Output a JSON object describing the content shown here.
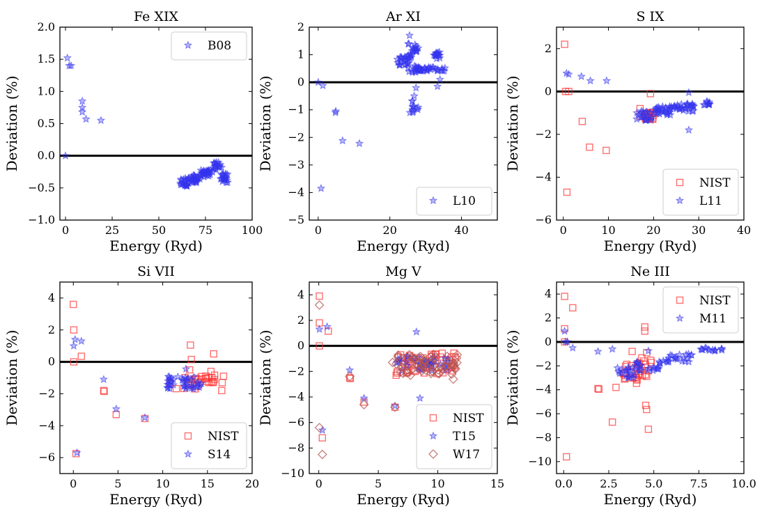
{
  "chart_data": [
    {
      "type": "scatter",
      "title": "Fe XIX",
      "xlabel": "Energy (Ryd)",
      "ylabel": "Deviation (%)",
      "xlim": [
        -3,
        100
      ],
      "ylim": [
        -1.0,
        2.0
      ],
      "xticks": [
        0,
        25,
        50,
        75,
        100
      ],
      "yticks": [
        -1.0,
        -0.5,
        0.0,
        0.5,
        1.0,
        1.5,
        2.0
      ],
      "xtick_labels": [
        "0",
        "25",
        "50",
        "75",
        "100"
      ],
      "ytick_labels": [
        "−1.0",
        "−0.5",
        "0.0",
        "0.5",
        "1.0",
        "1.5",
        "2.0"
      ],
      "zero_line": true,
      "legend_position": "top-right",
      "series": [
        {
          "name": "B08",
          "marker": "star",
          "color": "#3333ee",
          "points": [
            [
              0,
              0.0
            ],
            [
              1,
              1.52
            ],
            [
              2,
              1.4
            ],
            [
              3,
              1.4
            ],
            [
              9,
              0.85
            ],
            [
              9,
              0.75
            ],
            [
              9,
              0.68
            ],
            [
              11,
              0.57
            ],
            [
              19,
              0.55
            ]
          ],
          "bands": [
            {
              "x": [
                61,
                66
              ],
              "y": [
                -0.5,
                -0.35
              ],
              "n": 22
            },
            {
              "x": [
                66,
                72
              ],
              "y": [
                -0.42,
                -0.3
              ],
              "n": 26
            },
            {
              "x": [
                72,
                79
              ],
              "y": [
                -0.33,
                -0.22
              ],
              "n": 28
            },
            {
              "x": [
                79,
                84
              ],
              "y": [
                -0.22,
                -0.1
              ],
              "n": 18
            },
            {
              "x": [
                83,
                87
              ],
              "y": [
                -0.42,
                -0.28
              ],
              "n": 22
            }
          ]
        }
      ]
    },
    {
      "type": "scatter",
      "title": "Ar XI",
      "xlabel": "Energy (Ryd)",
      "ylabel": "Deviation (%)",
      "xlim": [
        -2.5,
        50
      ],
      "ylim": [
        -5,
        2
      ],
      "xticks": [
        0,
        20,
        40
      ],
      "yticks": [
        -5,
        -4,
        -3,
        -2,
        -1,
        0,
        1,
        2
      ],
      "xtick_labels": [
        "0",
        "20",
        "40"
      ],
      "ytick_labels": [
        "−5",
        "−4",
        "−3",
        "−2",
        "−1",
        "0",
        "1",
        "2"
      ],
      "zero_line": true,
      "legend_position": "bottom-right",
      "series": [
        {
          "name": "L10",
          "marker": "star",
          "color": "#3333ee",
          "points": [
            [
              0,
              0.0
            ],
            [
              0.8,
              -3.85
            ],
            [
              1.3,
              -0.12
            ],
            [
              4.8,
              -1.1
            ],
            [
              4.9,
              -1.05
            ],
            [
              6.8,
              -2.12
            ],
            [
              11.5,
              -2.22
            ],
            [
              25.5,
              1.7
            ],
            [
              25.6,
              -1.1
            ],
            [
              26.3,
              -1.0
            ],
            [
              26.8,
              -0.5
            ],
            [
              27.3,
              -0.2
            ],
            [
              33.3,
              -0.15
            ],
            [
              34.0,
              0.1
            ]
          ],
          "bands": [
            {
              "x": [
                22,
                26
              ],
              "y": [
                0.6,
                0.95
              ],
              "n": 24
            },
            {
              "x": [
                25,
                28
              ],
              "y": [
                0.9,
                1.4
              ],
              "n": 20
            },
            {
              "x": [
                25,
                28
              ],
              "y": [
                0.35,
                0.6
              ],
              "n": 16
            },
            {
              "x": [
                28,
                36
              ],
              "y": [
                0.4,
                0.55
              ],
              "n": 30
            },
            {
              "x": [
                32,
                34
              ],
              "y": [
                0.85,
                1.1
              ],
              "n": 16
            },
            {
              "x": [
                26,
                28
              ],
              "y": [
                -1.1,
                -0.6
              ],
              "n": 10
            }
          ]
        }
      ]
    },
    {
      "type": "scatter",
      "title": "S IX",
      "xlabel": "Energy (Ryd)",
      "ylabel": "Deviation (%)",
      "xlim": [
        -1.5,
        40
      ],
      "ylim": [
        -6,
        3
      ],
      "xticks": [
        0,
        10,
        20,
        30,
        40
      ],
      "yticks": [
        -6,
        -4,
        -2,
        0,
        2
      ],
      "xtick_labels": [
        "0",
        "10",
        "20",
        "30",
        "40"
      ],
      "ytick_labels": [
        "−6",
        "−4",
        "−2",
        "0",
        "2"
      ],
      "zero_line": true,
      "legend_position": "bottom-right",
      "series": [
        {
          "name": "NIST",
          "marker": "square",
          "color": "#ff3333",
          "points": [
            [
              0.3,
              2.2
            ],
            [
              0.5,
              0.0
            ],
            [
              0.8,
              -4.7
            ],
            [
              1.2,
              0.0
            ],
            [
              4.2,
              -1.4
            ],
            [
              5.8,
              -2.6
            ],
            [
              9.5,
              -2.75
            ],
            [
              17,
              -0.8
            ],
            [
              18,
              -1.1
            ],
            [
              19.3,
              -0.1
            ],
            [
              19.8,
              -1.3
            ],
            [
              20,
              -1.0
            ]
          ],
          "bands": [
            {
              "x": [
                17,
                20
              ],
              "y": [
                -1.3,
                -0.95
              ],
              "n": 16
            }
          ]
        },
        {
          "name": "L11",
          "marker": "star",
          "color": "#3333ee",
          "points": [
            [
              0.7,
              0.85
            ],
            [
              1.2,
              0.8
            ],
            [
              4.0,
              0.7
            ],
            [
              6.0,
              0.5
            ],
            [
              9.6,
              0.5
            ],
            [
              27.8,
              -0.05
            ],
            [
              27.8,
              -1.8
            ]
          ],
          "bands": [
            {
              "x": [
                16,
                20
              ],
              "y": [
                -1.35,
                -0.9
              ],
              "n": 20
            },
            {
              "x": [
                20,
                24
              ],
              "y": [
                -1.1,
                -0.7
              ],
              "n": 30
            },
            {
              "x": [
                24,
                29
              ],
              "y": [
                -0.95,
                -0.55
              ],
              "n": 30
            },
            {
              "x": [
                31,
                32.5
              ],
              "y": [
                -0.65,
                -0.45
              ],
              "n": 10
            }
          ]
        }
      ]
    },
    {
      "type": "scatter",
      "title": "Si VII",
      "xlabel": "Energy (Ryd)",
      "ylabel": "Deviation (%)",
      "xlim": [
        -1.5,
        20
      ],
      "ylim": [
        -7,
        5
      ],
      "xticks": [
        0,
        5,
        10,
        15,
        20
      ],
      "yticks": [
        -6,
        -4,
        -2,
        0,
        2,
        4
      ],
      "xtick_labels": [
        "0",
        "5",
        "10",
        "15",
        "20"
      ],
      "ytick_labels": [
        "−6",
        "−4",
        "−2",
        "0",
        "2",
        "4"
      ],
      "zero_line": true,
      "legend_position": "bottom-right",
      "series": [
        {
          "name": "NIST",
          "marker": "square",
          "color": "#ff3333",
          "points": [
            [
              0,
              3.6
            ],
            [
              0.05,
              2.0
            ],
            [
              0.05,
              0.0
            ],
            [
              0.3,
              -5.75
            ],
            [
              0.9,
              0.35
            ],
            [
              3.4,
              -1.8
            ],
            [
              3.45,
              -1.85
            ],
            [
              4.8,
              -3.3
            ],
            [
              8,
              -3.55
            ],
            [
              13.1,
              1.05
            ],
            [
              13.2,
              0.15
            ],
            [
              13.0,
              -0.5
            ],
            [
              15.7,
              0.5
            ],
            [
              15.4,
              -0.6
            ],
            [
              16.8,
              -0.9
            ],
            [
              16.6,
              -1.8
            ]
          ],
          "bands": [
            {
              "x": [
                10.8,
                14.0
              ],
              "y": [
                -1.7,
                -0.9
              ],
              "n": 14
            },
            {
              "x": [
                14.0,
                17.0
              ],
              "y": [
                -1.4,
                -0.8
              ],
              "n": 16
            }
          ]
        },
        {
          "name": "S14",
          "marker": "star",
          "color": "#3333ee",
          "points": [
            [
              0.05,
              1.0
            ],
            [
              0.2,
              1.4
            ],
            [
              0.9,
              1.3
            ],
            [
              0.4,
              -5.7
            ],
            [
              3.4,
              -1.1
            ],
            [
              4.8,
              -2.95
            ],
            [
              8,
              -3.5
            ],
            [
              12.6,
              -0.45
            ]
          ],
          "bands": [
            {
              "x": [
                10.5,
                14.5
              ],
              "y": [
                -1.7,
                -0.85
              ],
              "n": 40
            }
          ]
        }
      ]
    },
    {
      "type": "scatter",
      "title": "Mg V",
      "xlabel": "Energy (Ryd)",
      "ylabel": "Deviation (%)",
      "xlim": [
        -0.8,
        15
      ],
      "ylim": [
        -10,
        5
      ],
      "xticks": [
        0,
        5,
        10,
        15
      ],
      "yticks": [
        -10,
        -8,
        -6,
        -4,
        -2,
        0,
        2,
        4
      ],
      "xtick_labels": [
        "0",
        "5",
        "10",
        "15"
      ],
      "ytick_labels": [
        "−10",
        "−8",
        "−6",
        "−4",
        "−2",
        "0",
        "2",
        "4"
      ],
      "zero_line": true,
      "legend_position": "bottom-right",
      "series": [
        {
          "name": "NIST",
          "marker": "square",
          "color": "#ff3333",
          "points": [
            [
              0.05,
              3.9
            ],
            [
              0.05,
              1.8
            ],
            [
              0.05,
              0.0
            ],
            [
              0.3,
              -7.2
            ],
            [
              0.8,
              1.15
            ],
            [
              2.6,
              -2.5
            ],
            [
              2.65,
              -2.55
            ],
            [
              3.8,
              -4.4
            ],
            [
              6.4,
              -4.8
            ],
            [
              6.5,
              -2.3
            ],
            [
              8.1,
              -2.0
            ]
          ],
          "bands": [
            {
              "x": [
                6.5,
                11.5
              ],
              "y": [
                -2.2,
                -0.5
              ],
              "n": 50
            }
          ]
        },
        {
          "name": "T15",
          "marker": "star",
          "color": "#3333ee",
          "points": [
            [
              0.05,
              1.3
            ],
            [
              0.7,
              1.5
            ],
            [
              0.3,
              -6.6
            ],
            [
              2.6,
              -1.9
            ],
            [
              3.8,
              -4.1
            ],
            [
              6.4,
              -4.7
            ],
            [
              8.2,
              1.1
            ],
            [
              8.5,
              -4.1
            ]
          ],
          "bands": [
            {
              "x": [
                6.5,
                11.0
              ],
              "y": [
                -2.0,
                -0.8
              ],
              "n": 40
            }
          ]
        },
        {
          "name": "W17",
          "marker": "diamond",
          "color": "#b5544f",
          "points": [
            [
              0.05,
              3.2
            ],
            [
              0.05,
              -6.4
            ],
            [
              0.3,
              -8.5
            ],
            [
              2.6,
              -2.4
            ],
            [
              3.8,
              -4.6
            ],
            [
              6.4,
              -4.8
            ],
            [
              6.2,
              -1.3
            ],
            [
              11.3,
              -2.6
            ]
          ],
          "bands": [
            {
              "x": [
                6.5,
                11.8
              ],
              "y": [
                -2.3,
                -0.6
              ],
              "n": 60
            }
          ]
        }
      ]
    },
    {
      "type": "scatter",
      "title": "Ne III",
      "xlabel": "Energy (Ryd)",
      "ylabel": "Deviation (%)",
      "xlim": [
        -0.4,
        10
      ],
      "ylim": [
        -11,
        5
      ],
      "xticks": [
        0,
        2.5,
        5,
        7.5,
        10
      ],
      "yticks": [
        -10,
        -8,
        -6,
        -4,
        -2,
        0,
        2,
        4
      ],
      "xtick_labels": [
        "0.0",
        "2.5",
        "5.0",
        "7.5",
        "10.0"
      ],
      "ytick_labels": [
        "−10",
        "−8",
        "−6",
        "−4",
        "−2",
        "0",
        "2",
        "4"
      ],
      "zero_line": true,
      "legend_position": "top-right",
      "series": [
        {
          "name": "NIST",
          "marker": "square",
          "color": "#ff3333",
          "points": [
            [
              0.05,
              3.8
            ],
            [
              0.05,
              1.1
            ],
            [
              0.05,
              0.0
            ],
            [
              0.15,
              -9.6
            ],
            [
              0.5,
              2.85
            ],
            [
              1.9,
              -3.9
            ],
            [
              1.95,
              -3.95
            ],
            [
              2.7,
              -6.7
            ],
            [
              2.9,
              -3.8
            ],
            [
              4.5,
              1.25
            ],
            [
              4.5,
              0.9
            ],
            [
              4.55,
              -5.3
            ],
            [
              4.6,
              -5.65
            ],
            [
              4.7,
              -7.3
            ],
            [
              3.8,
              -0.8
            ],
            [
              4.6,
              -0.9
            ]
          ],
          "bands": [
            {
              "x": [
                3.3,
                4.1
              ],
              "y": [
                -3.6,
                -1.8
              ],
              "n": 16
            },
            {
              "x": [
                4.1,
                4.9
              ],
              "y": [
                -2.9,
                -1.2
              ],
              "n": 16
            }
          ]
        },
        {
          "name": "M11",
          "marker": "star",
          "color": "#3333ee",
          "points": [
            [
              0.05,
              0.9
            ],
            [
              0.1,
              0.0
            ],
            [
              0.2,
              0.0
            ],
            [
              0.5,
              -0.5
            ],
            [
              1.9,
              -0.8
            ],
            [
              2.7,
              -0.6
            ],
            [
              4.7,
              -0.75
            ]
          ],
          "bands": [
            {
              "x": [
                2.9,
                4.0
              ],
              "y": [
                -3.0,
                -2.1
              ],
              "n": 18
            },
            {
              "x": [
                4.0,
                5.5
              ],
              "y": [
                -2.4,
                -1.6
              ],
              "n": 22
            },
            {
              "x": [
                5.5,
                7.2
              ],
              "y": [
                -1.7,
                -1.0
              ],
              "n": 22
            },
            {
              "x": [
                7.5,
                8.8
              ],
              "y": [
                -0.8,
                -0.5
              ],
              "n": 14
            }
          ]
        }
      ]
    }
  ]
}
